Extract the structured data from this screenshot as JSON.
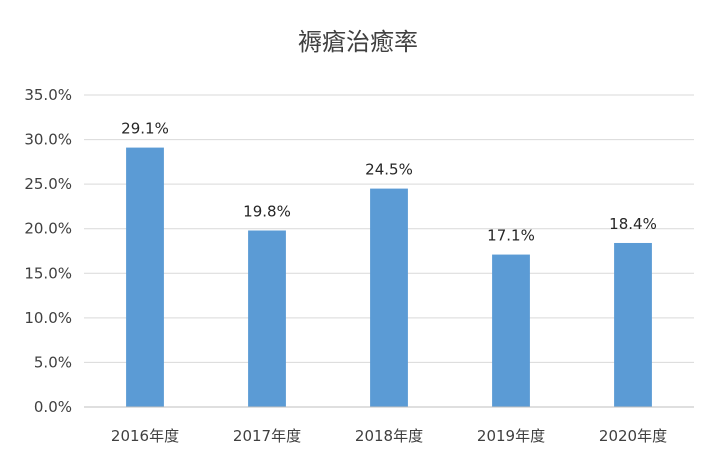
{
  "chart_data": {
    "type": "bar",
    "title": "褥瘡治癒率",
    "categories": [
      "2016年度",
      "2017年度",
      "2018年度",
      "2019年度",
      "2020年度"
    ],
    "values": [
      29.1,
      19.8,
      24.5,
      17.1,
      18.4
    ],
    "value_labels": [
      "29.1%",
      "19.8%",
      "24.5%",
      "17.1%",
      "18.4%"
    ],
    "y_ticks": [
      0,
      5,
      10,
      15,
      20,
      25,
      30,
      35
    ],
    "y_tick_labels": [
      "0.0%",
      "5.0%",
      "10.0%",
      "15.0%",
      "20.0%",
      "25.0%",
      "30.0%",
      "35.0%"
    ],
    "ylim": [
      0,
      35
    ],
    "grid": true,
    "bar_color": "#5b9bd5",
    "xlabel": "",
    "ylabel": ""
  }
}
